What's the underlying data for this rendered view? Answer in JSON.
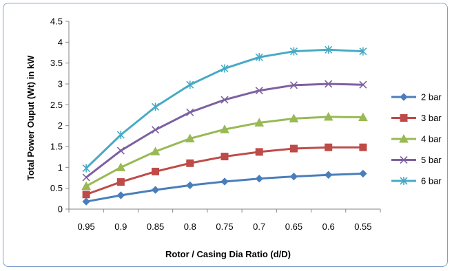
{
  "chart_data": {
    "type": "line",
    "title": "",
    "xlabel": "Rotor / Casing Dia Ratio (d/D)",
    "ylabel": "Total Power Ouput (Wt) in kW",
    "categories": [
      "0.95",
      "0.9",
      "0.85",
      "0.8",
      "0.75",
      "0.7",
      "0.65",
      "0.6",
      "0.55"
    ],
    "y_ticks": [
      "0",
      "0.5",
      "1",
      "1.5",
      "2",
      "2.5",
      "3",
      "3.5",
      "4",
      "4.5"
    ],
    "ylim": [
      0,
      4.5
    ],
    "grid": false,
    "legend_position": "right",
    "series": [
      {
        "name": "2 bar",
        "color": "#4a7ebb",
        "marker": "diamond",
        "values": [
          0.18,
          0.33,
          0.46,
          0.57,
          0.66,
          0.73,
          0.78,
          0.82,
          0.85
        ]
      },
      {
        "name": "3 bar",
        "color": "#be4b48",
        "marker": "square",
        "values": [
          0.35,
          0.65,
          0.9,
          1.1,
          1.26,
          1.37,
          1.45,
          1.48,
          1.48
        ]
      },
      {
        "name": "4 bar",
        "color": "#98b954",
        "marker": "triangle",
        "values": [
          0.55,
          1.0,
          1.38,
          1.69,
          1.91,
          2.07,
          2.17,
          2.21,
          2.2
        ]
      },
      {
        "name": "5 bar",
        "color": "#7d60a0",
        "marker": "x",
        "values": [
          0.76,
          1.4,
          1.9,
          2.32,
          2.62,
          2.84,
          2.97,
          3.0,
          2.98
        ]
      },
      {
        "name": "6 bar",
        "color": "#46aac5",
        "marker": "star",
        "values": [
          0.98,
          1.78,
          2.45,
          2.98,
          3.37,
          3.64,
          3.78,
          3.82,
          3.78
        ]
      }
    ]
  }
}
